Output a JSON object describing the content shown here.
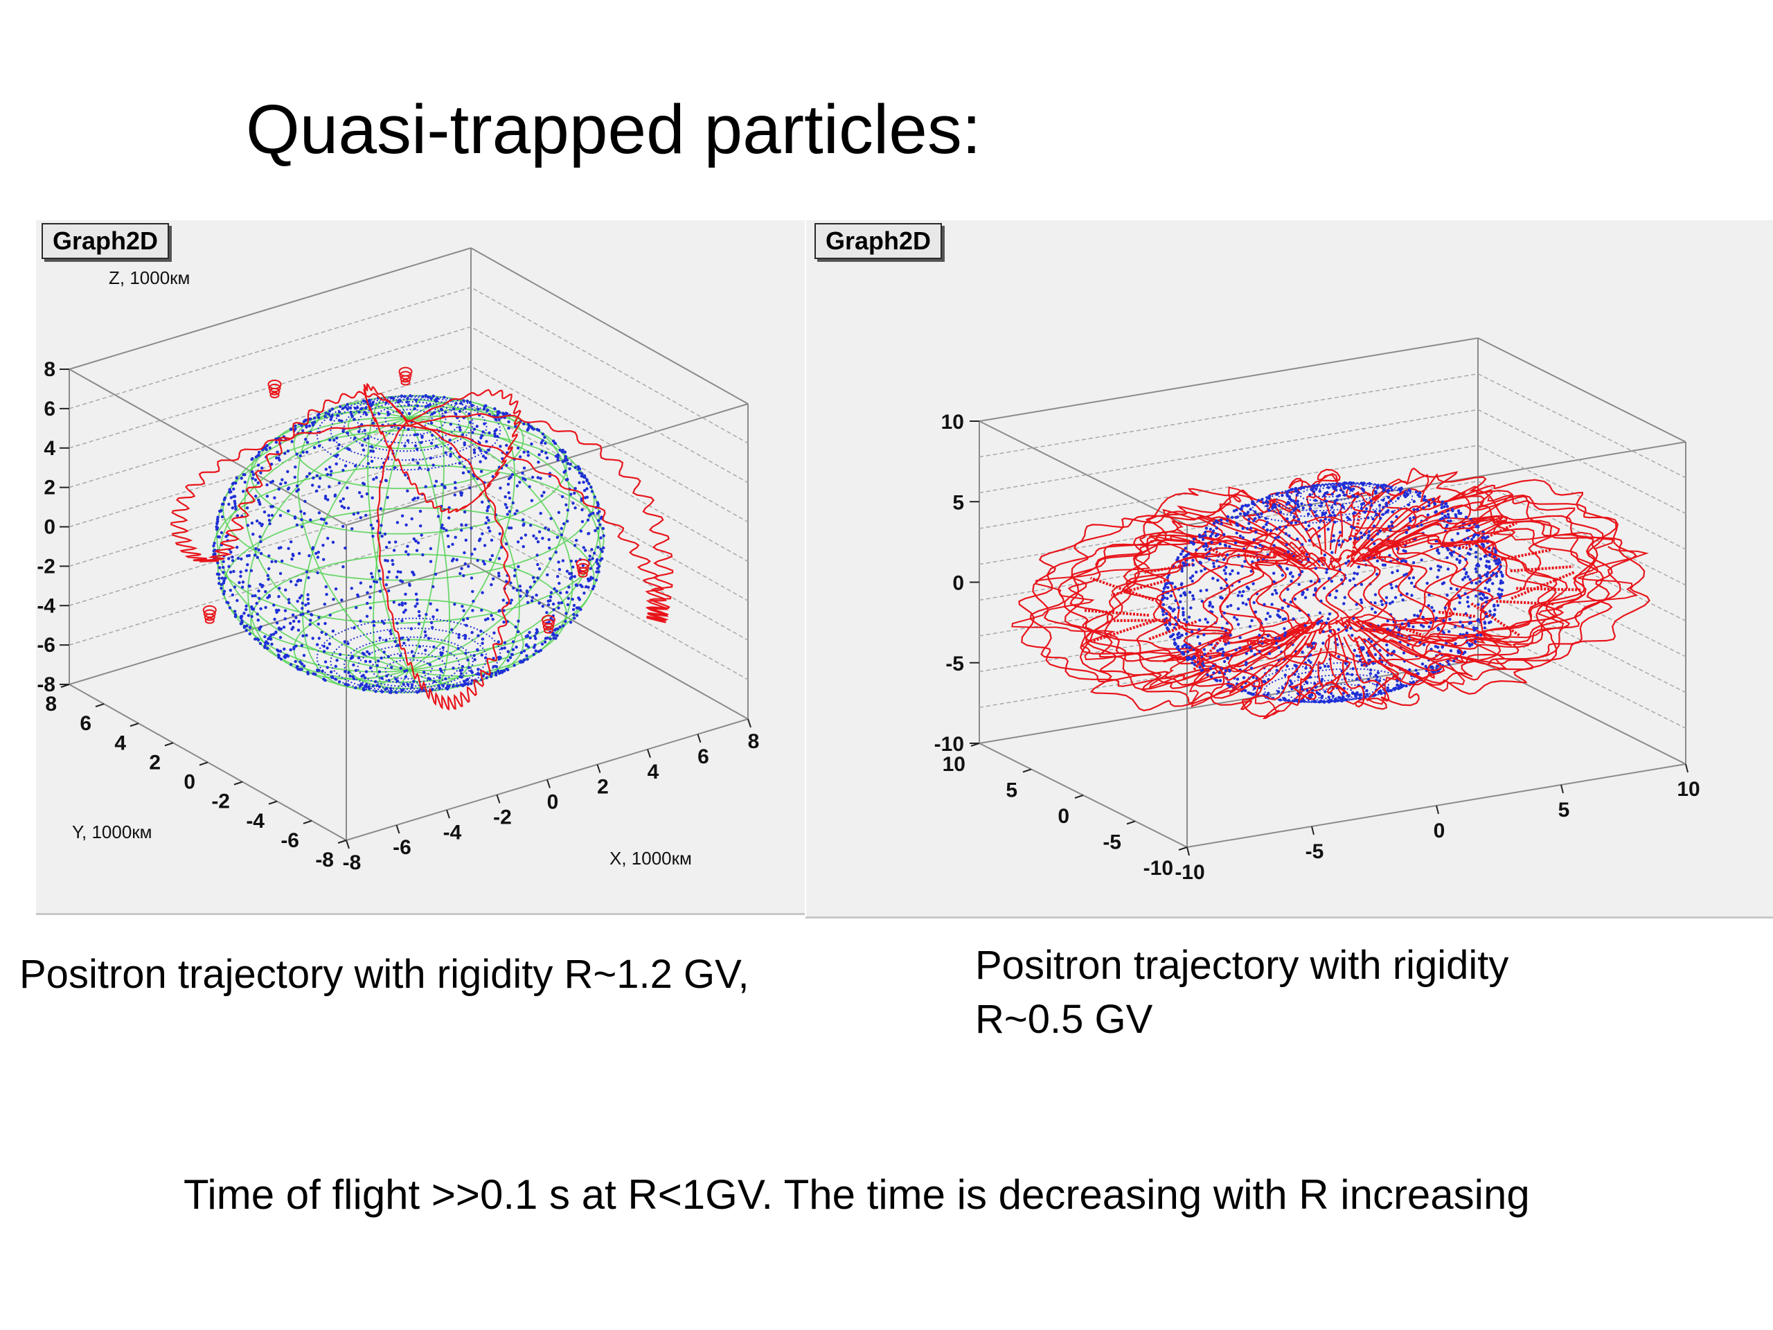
{
  "title": "Quasi-trapped particles:",
  "colors": {
    "trajectory": "#e8141a",
    "earth_dots": "#1f2fd6",
    "earth_grid": "#54d254",
    "box": "#8a8a8a",
    "panel_bg": "#f0f0f0"
  },
  "chart_data": [
    {
      "type": "scatter3d",
      "panel_label": "Graph2D",
      "xlabel": "X, 1000км",
      "ylabel": "Y, 1000км",
      "zlabel": "Z, 1000км",
      "xlim": [
        -8,
        8
      ],
      "ylim": [
        -8,
        8
      ],
      "zlim": [
        -8,
        8
      ],
      "x_ticks": [
        "-8",
        "-6",
        "-4",
        "-2",
        "0",
        "2",
        "4",
        "6",
        "8"
      ],
      "y_ticks": [
        "8",
        "6",
        "4",
        "2",
        "0",
        "-2",
        "-4",
        "-6",
        "-8"
      ],
      "z_ticks": [
        "8",
        "6",
        "4",
        "2",
        "0",
        "-2",
        "-4",
        "-6",
        "-8"
      ],
      "series": [
        {
          "kind": "trajectory",
          "description": "4 arcs"
        },
        {
          "kind": "earth"
        }
      ],
      "caption": "Positron trajectory with rigidity R~1.2 GV,"
    },
    {
      "type": "scatter3d",
      "panel_label": "Graph2D",
      "xlim": [
        -10,
        10
      ],
      "ylim": [
        -10,
        10
      ],
      "zlim": [
        -10,
        10
      ],
      "x_ticks": [
        "-10",
        "-5",
        "0",
        "5",
        "10"
      ],
      "y_ticks": [
        "10",
        "5",
        "0",
        "-5",
        "-10"
      ],
      "z_ticks": [
        "10",
        "5",
        "0",
        "-5",
        "-10"
      ],
      "series": [
        {
          "kind": "trajectory",
          "description": "toroidal drift shell"
        },
        {
          "kind": "earth"
        }
      ],
      "caption_line1": "Positron trajectory with rigidity",
      "caption_line2": "R~0.5 GV"
    }
  ],
  "footer": "Time of flight   >>0.1 s  at R<1GV. The time  is decreasing with R increasing"
}
